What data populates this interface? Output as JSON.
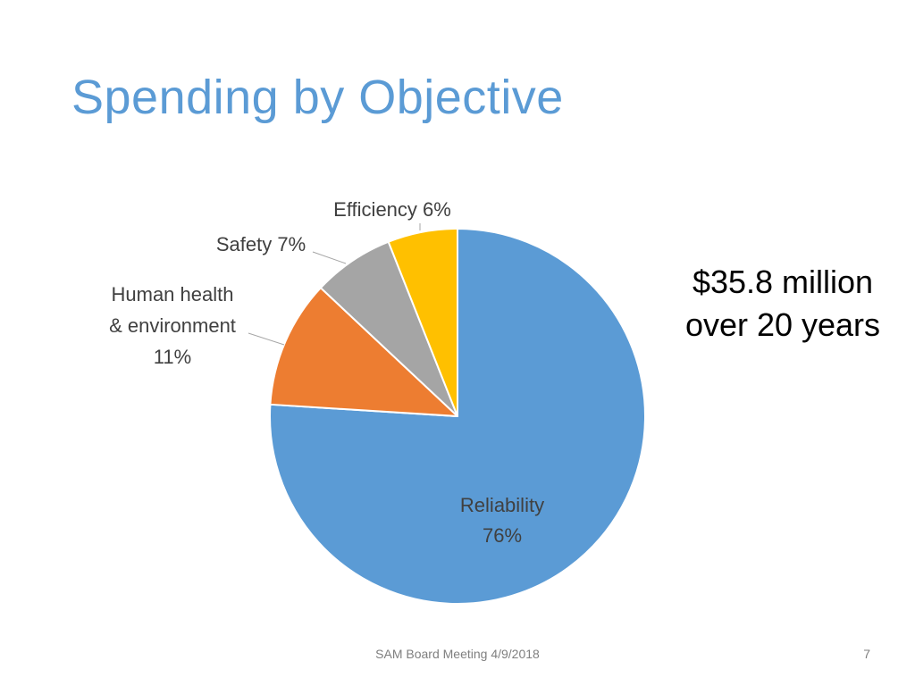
{
  "slide": {
    "title": "Spending by Objective",
    "callout_line1": "$35.8 million",
    "callout_line2": "over 20 years",
    "footer": "SAM Board Meeting 4/9/2018",
    "page_number": "7"
  },
  "chart_data": {
    "type": "pie",
    "title": "",
    "slices": [
      {
        "label": "Reliability",
        "value": 76,
        "label_lines": [
          "Reliability",
          "76%"
        ],
        "color": "#5b9bd5"
      },
      {
        "label": "Human health & environment",
        "value": 11,
        "label_lines": [
          "Human health",
          "& environment",
          "11%"
        ],
        "color": "#ed7d31"
      },
      {
        "label": "Safety",
        "value": 7,
        "label_lines": [
          "Safety 7%"
        ],
        "color": "#a5a5a5"
      },
      {
        "label": "Efficiency",
        "value": 6,
        "label_lines": [
          "Efficiency 6%"
        ],
        "color": "#ffc000"
      }
    ],
    "start_angle": "12 o'clock",
    "direction": "clockwise",
    "legend": "none",
    "data_labels": "category name and percentage"
  }
}
